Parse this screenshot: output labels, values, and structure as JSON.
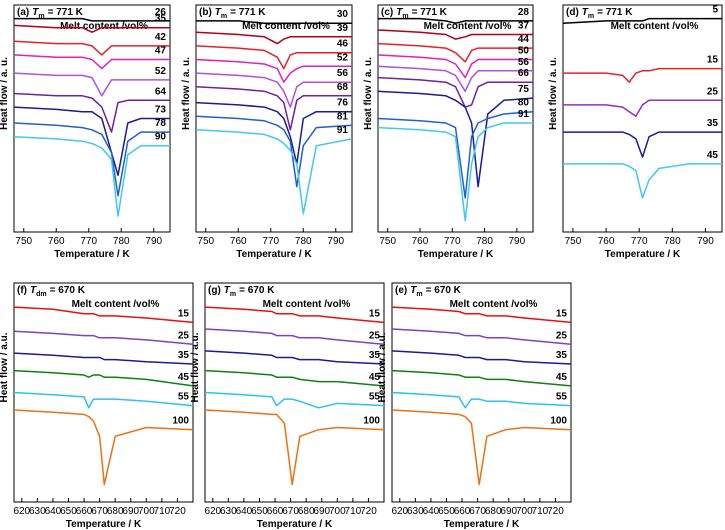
{
  "chart_data": [
    {
      "type": "line",
      "label": "(a)",
      "symbol": "T",
      "subscript": "m",
      "condition": "= 771 K",
      "legend_title": "Melt content /vol%",
      "xlabel": "Temperature / K",
      "ylabel": "Heat flow / a. u.",
      "xlim": [
        747,
        795
      ],
      "xticks": [
        750,
        760,
        770,
        780,
        790
      ],
      "ylim": [
        0,
        1
      ],
      "grid": false,
      "x": [
        747,
        760,
        768,
        771,
        774,
        777,
        779,
        782,
        786,
        795
      ],
      "series": [
        {
          "name": "26",
          "color": "#000000",
          "values": [
            0.94,
            0.94,
            0.94,
            0.93,
            0.93,
            0.93,
            0.93,
            0.93,
            0.93,
            0.93
          ]
        },
        {
          "name": "35",
          "color": "#b00018",
          "values": [
            0.91,
            0.9,
            0.9,
            0.88,
            0.9,
            0.9,
            0.9,
            0.9,
            0.9,
            0.9
          ]
        },
        {
          "name": "42",
          "color": "#e8202a",
          "values": [
            0.84,
            0.83,
            0.83,
            0.82,
            0.78,
            0.82,
            0.82,
            0.82,
            0.82,
            0.82
          ]
        },
        {
          "name": "47",
          "color": "#e020c0",
          "values": [
            0.78,
            0.77,
            0.77,
            0.76,
            0.72,
            0.76,
            0.76,
            0.76,
            0.76,
            0.76
          ]
        },
        {
          "name": "52",
          "color": "#b050e0",
          "values": [
            0.7,
            0.69,
            0.69,
            0.68,
            0.6,
            0.67,
            0.67,
            0.67,
            0.67,
            0.67
          ]
        },
        {
          "name": "64",
          "color": "#7020a0",
          "values": [
            0.61,
            0.6,
            0.6,
            0.59,
            0.55,
            0.44,
            0.57,
            0.58,
            0.58,
            0.58
          ]
        },
        {
          "name": "73",
          "color": "#1a1a9a",
          "values": [
            0.55,
            0.54,
            0.53,
            0.53,
            0.5,
            0.35,
            0.25,
            0.48,
            0.5,
            0.5
          ]
        },
        {
          "name": "78",
          "color": "#2060d0",
          "values": [
            0.48,
            0.47,
            0.46,
            0.45,
            0.43,
            0.35,
            0.16,
            0.4,
            0.44,
            0.44
          ]
        },
        {
          "name": "90",
          "color": "#40c8f0",
          "values": [
            0.42,
            0.41,
            0.4,
            0.39,
            0.37,
            0.32,
            0.07,
            0.34,
            0.38,
            0.38
          ]
        }
      ]
    },
    {
      "type": "line",
      "label": "(b)",
      "symbol": "T",
      "subscript": "m",
      "condition": "= 771 K",
      "legend_title": "Melt content /vol%",
      "xlabel": "Temperature / K",
      "ylabel": "Heat flow / a. u.",
      "xlim": [
        747,
        795
      ],
      "xticks": [
        750,
        760,
        770,
        780,
        790
      ],
      "ylim": [
        0,
        1
      ],
      "grid": false,
      "x": [
        747,
        760,
        768,
        772,
        774,
        776,
        778,
        780,
        784,
        795
      ],
      "series": [
        {
          "name": "30",
          "color": "#000000",
          "values": [
            0.93,
            0.93,
            0.92,
            0.92,
            0.92,
            0.92,
            0.92,
            0.92,
            0.92,
            0.92
          ]
        },
        {
          "name": "39",
          "color": "#b00018",
          "values": [
            0.88,
            0.87,
            0.86,
            0.83,
            0.85,
            0.86,
            0.86,
            0.86,
            0.86,
            0.86
          ]
        },
        {
          "name": "46",
          "color": "#e8202a",
          "values": [
            0.82,
            0.81,
            0.8,
            0.77,
            0.72,
            0.78,
            0.79,
            0.79,
            0.79,
            0.79
          ]
        },
        {
          "name": "52",
          "color": "#e020c0",
          "values": [
            0.76,
            0.75,
            0.74,
            0.72,
            0.66,
            0.7,
            0.72,
            0.73,
            0.73,
            0.73
          ]
        },
        {
          "name": "56",
          "color": "#b050e0",
          "values": [
            0.7,
            0.69,
            0.68,
            0.66,
            0.62,
            0.55,
            0.64,
            0.66,
            0.66,
            0.66
          ]
        },
        {
          "name": "68",
          "color": "#7020a0",
          "values": [
            0.64,
            0.63,
            0.62,
            0.6,
            0.57,
            0.45,
            0.58,
            0.6,
            0.6,
            0.6
          ]
        },
        {
          "name": "76",
          "color": "#1a1a9a",
          "values": [
            0.57,
            0.56,
            0.55,
            0.53,
            0.5,
            0.42,
            0.3,
            0.5,
            0.53,
            0.53
          ]
        },
        {
          "name": "81",
          "color": "#2060d0",
          "values": [
            0.51,
            0.5,
            0.49,
            0.47,
            0.45,
            0.4,
            0.2,
            0.38,
            0.46,
            0.47
          ]
        },
        {
          "name": "91",
          "color": "#40c8f0",
          "values": [
            0.45,
            0.44,
            0.43,
            0.41,
            0.39,
            0.36,
            0.3,
            0.08,
            0.38,
            0.41
          ]
        }
      ]
    },
    {
      "type": "line",
      "label": "(c)",
      "symbol": "T",
      "subscript": "m",
      "condition": "= 771 K",
      "legend_title": "Melt content /vol%",
      "xlabel": "Temperature / K",
      "ylabel": "Heat flow / a. u.",
      "xlim": [
        747,
        795
      ],
      "xticks": [
        750,
        760,
        770,
        780,
        790
      ],
      "ylim": [
        0,
        1
      ],
      "grid": false,
      "x": [
        747,
        760,
        768,
        771,
        774,
        776,
        778,
        781,
        786,
        795
      ],
      "series": [
        {
          "name": "28",
          "color": "#000000",
          "values": [
            0.94,
            0.94,
            0.93,
            0.92,
            0.93,
            0.93,
            0.93,
            0.93,
            0.93,
            0.93
          ]
        },
        {
          "name": "37",
          "color": "#b00018",
          "values": [
            0.89,
            0.88,
            0.87,
            0.85,
            0.86,
            0.87,
            0.87,
            0.87,
            0.87,
            0.87
          ]
        },
        {
          "name": "44",
          "color": "#e8202a",
          "values": [
            0.83,
            0.82,
            0.81,
            0.79,
            0.75,
            0.8,
            0.81,
            0.81,
            0.81,
            0.81
          ]
        },
        {
          "name": "50",
          "color": "#e020c0",
          "values": [
            0.78,
            0.77,
            0.76,
            0.74,
            0.68,
            0.74,
            0.76,
            0.76,
            0.76,
            0.76
          ]
        },
        {
          "name": "56",
          "color": "#b050e0",
          "values": [
            0.73,
            0.72,
            0.71,
            0.69,
            0.62,
            0.68,
            0.71,
            0.71,
            0.71,
            0.71
          ]
        },
        {
          "name": "66",
          "color": "#7020a0",
          "values": [
            0.68,
            0.67,
            0.66,
            0.64,
            0.55,
            0.56,
            0.64,
            0.66,
            0.66,
            0.66
          ]
        },
        {
          "name": "75",
          "color": "#1a1a9a",
          "values": [
            0.62,
            0.61,
            0.6,
            0.58,
            0.55,
            0.48,
            0.2,
            0.52,
            0.58,
            0.59
          ]
        },
        {
          "name": "80",
          "color": "#2060d0",
          "values": [
            0.5,
            0.49,
            0.48,
            0.46,
            0.15,
            0.42,
            0.48,
            0.5,
            0.52,
            0.53
          ]
        },
        {
          "name": "91",
          "color": "#40c8f0",
          "values": [
            0.46,
            0.45,
            0.44,
            0.42,
            0.05,
            0.3,
            0.42,
            0.46,
            0.48,
            0.48
          ]
        }
      ]
    },
    {
      "type": "line",
      "label": "(d)",
      "symbol": "T",
      "subscript": "m",
      "condition": "= 771 K",
      "legend_title": "Melt content /vol%",
      "xlabel": "Temperature / K",
      "ylabel": "Heat flow / a. u.",
      "xlim": [
        747,
        795
      ],
      "xticks": [
        750,
        760,
        770,
        780,
        790
      ],
      "ylim": [
        0,
        1
      ],
      "grid": false,
      "x": [
        747,
        760,
        765,
        767,
        769,
        771,
        773,
        776,
        785,
        795
      ],
      "series": [
        {
          "name": "5",
          "color": "#000000",
          "values": [
            0.92,
            0.93,
            0.93,
            0.93,
            0.93,
            0.93,
            0.94,
            0.94,
            0.94,
            0.94
          ]
        },
        {
          "name": "15",
          "color": "#e8202a",
          "values": [
            0.7,
            0.7,
            0.69,
            0.66,
            0.7,
            0.71,
            0.71,
            0.72,
            0.72,
            0.72
          ]
        },
        {
          "name": "25",
          "color": "#9030c0",
          "values": [
            0.56,
            0.56,
            0.55,
            0.53,
            0.51,
            0.56,
            0.58,
            0.58,
            0.58,
            0.58
          ]
        },
        {
          "name": "35",
          "color": "#1a1a9a",
          "values": [
            0.44,
            0.44,
            0.44,
            0.43,
            0.41,
            0.33,
            0.42,
            0.44,
            0.44,
            0.44
          ]
        },
        {
          "name": "45",
          "color": "#40c8f0",
          "values": [
            0.3,
            0.3,
            0.3,
            0.29,
            0.27,
            0.15,
            0.23,
            0.28,
            0.3,
            0.3
          ]
        }
      ]
    },
    {
      "type": "line",
      "label": "(f)",
      "symbol": "T",
      "subscript": "dm",
      "condition": "= 670 K",
      "legend_title": "Melt content /vol%",
      "xlabel": "Temperature / K",
      "ylabel": "Heat flow / a.u.",
      "xlim": [
        615,
        730
      ],
      "xticks": [
        620,
        630,
        640,
        650,
        660,
        670,
        680,
        690,
        700,
        710,
        720
      ],
      "ylim": [
        0,
        1
      ],
      "grid": false,
      "x": [
        615,
        640,
        660,
        663,
        666,
        670,
        673,
        680,
        700,
        730
      ],
      "series": [
        {
          "name": "15",
          "color": "#e81010",
          "values": [
            0.89,
            0.88,
            0.86,
            0.86,
            0.86,
            0.85,
            0.85,
            0.85,
            0.84,
            0.82
          ]
        },
        {
          "name": "25",
          "color": "#8040c0",
          "values": [
            0.78,
            0.77,
            0.76,
            0.76,
            0.76,
            0.75,
            0.75,
            0.75,
            0.74,
            0.72
          ]
        },
        {
          "name": "35",
          "color": "#1a1a9a",
          "values": [
            0.68,
            0.67,
            0.66,
            0.66,
            0.66,
            0.66,
            0.65,
            0.65,
            0.64,
            0.63
          ]
        },
        {
          "name": "45",
          "color": "#108010",
          "values": [
            0.6,
            0.59,
            0.58,
            0.57,
            0.58,
            0.58,
            0.57,
            0.57,
            0.56,
            0.53
          ]
        },
        {
          "name": "55",
          "color": "#30c0f0",
          "values": [
            0.5,
            0.49,
            0.48,
            0.43,
            0.47,
            0.47,
            0.47,
            0.47,
            0.46,
            0.44
          ]
        },
        {
          "name": "100",
          "color": "#f07010",
          "values": [
            0.42,
            0.41,
            0.4,
            0.39,
            0.37,
            0.3,
            0.08,
            0.3,
            0.34,
            0.33
          ]
        }
      ]
    },
    {
      "type": "line",
      "label": "(g)",
      "symbol": "T",
      "subscript": "m",
      "condition": "= 670 K",
      "legend_title": "Melt content /vol%",
      "xlabel": "Temperature / K",
      "ylabel": "Heat flow / a.u.",
      "xlim": [
        615,
        730
      ],
      "xticks": [
        620,
        630,
        640,
        650,
        660,
        670,
        680,
        690,
        700,
        710,
        720
      ],
      "ylim": [
        0,
        1
      ],
      "grid": false,
      "x": [
        615,
        640,
        658,
        661,
        666,
        671,
        676,
        688,
        700,
        730
      ],
      "series": [
        {
          "name": "15",
          "color": "#e81010",
          "values": [
            0.89,
            0.88,
            0.87,
            0.86,
            0.86,
            0.86,
            0.85,
            0.85,
            0.84,
            0.82
          ]
        },
        {
          "name": "25",
          "color": "#8040c0",
          "values": [
            0.79,
            0.78,
            0.77,
            0.76,
            0.76,
            0.76,
            0.75,
            0.75,
            0.74,
            0.72
          ]
        },
        {
          "name": "35",
          "color": "#1a1a9a",
          "values": [
            0.69,
            0.68,
            0.67,
            0.66,
            0.66,
            0.66,
            0.65,
            0.65,
            0.64,
            0.63
          ]
        },
        {
          "name": "45",
          "color": "#108010",
          "values": [
            0.6,
            0.59,
            0.58,
            0.57,
            0.57,
            0.57,
            0.56,
            0.55,
            0.55,
            0.53
          ]
        },
        {
          "name": "55",
          "color": "#30c0f0",
          "values": [
            0.5,
            0.49,
            0.48,
            0.44,
            0.47,
            0.47,
            0.46,
            0.43,
            0.45,
            0.44
          ]
        },
        {
          "name": "100",
          "color": "#f07010",
          "values": [
            0.42,
            0.41,
            0.4,
            0.4,
            0.36,
            0.08,
            0.3,
            0.33,
            0.34,
            0.33
          ]
        }
      ]
    },
    {
      "type": "line",
      "label": "(e)",
      "symbol": "T",
      "subscript": "m",
      "condition": "= 670 K",
      "legend_title": "Melt content /vol%",
      "xlabel": "Temperature / K",
      "ylabel": "Heat flow / a.u.",
      "xlim": [
        615,
        730
      ],
      "xticks": [
        620,
        630,
        640,
        650,
        660,
        670,
        680,
        690,
        700,
        710,
        720
      ],
      "ylim": [
        0,
        1
      ],
      "grid": false,
      "x": [
        615,
        640,
        658,
        662,
        666,
        671,
        676,
        688,
        700,
        730
      ],
      "series": [
        {
          "name": "15",
          "color": "#e81010",
          "values": [
            0.89,
            0.88,
            0.87,
            0.86,
            0.86,
            0.86,
            0.85,
            0.85,
            0.84,
            0.82
          ]
        },
        {
          "name": "25",
          "color": "#8040c0",
          "values": [
            0.79,
            0.78,
            0.77,
            0.76,
            0.76,
            0.76,
            0.75,
            0.75,
            0.74,
            0.72
          ]
        },
        {
          "name": "35",
          "color": "#1a1a9a",
          "values": [
            0.69,
            0.68,
            0.67,
            0.66,
            0.66,
            0.66,
            0.65,
            0.65,
            0.64,
            0.63
          ]
        },
        {
          "name": "45",
          "color": "#108010",
          "values": [
            0.6,
            0.59,
            0.58,
            0.57,
            0.57,
            0.57,
            0.56,
            0.56,
            0.55,
            0.53
          ]
        },
        {
          "name": "55",
          "color": "#30c0f0",
          "values": [
            0.5,
            0.49,
            0.48,
            0.43,
            0.47,
            0.47,
            0.46,
            0.46,
            0.45,
            0.44
          ]
        },
        {
          "name": "100",
          "color": "#f07010",
          "values": [
            0.42,
            0.41,
            0.4,
            0.39,
            0.36,
            0.08,
            0.3,
            0.33,
            0.34,
            0.33
          ]
        }
      ]
    }
  ]
}
